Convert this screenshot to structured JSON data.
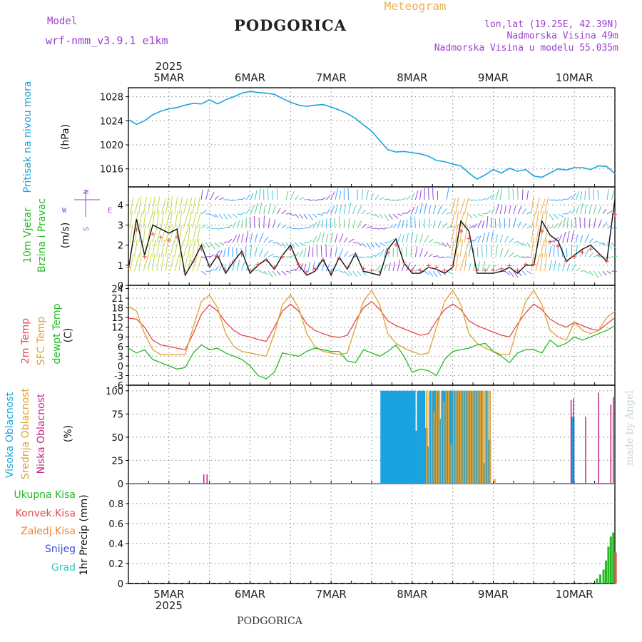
{
  "header": {
    "model_label": "Model",
    "model_name": "wrf-nmm_v3.9.1 e1km",
    "city": "PODGORICA",
    "meteogram_label": "Meteogram",
    "lonlat": "lon,lat (19.25E, 42.39N)",
    "altitude": "Nadmorska Visina 49m",
    "model_altitude": "Nadmorska Visina u modelu 55.035m",
    "footer_city": "PODGORICA",
    "credit": "made by Angel",
    "year": "2025"
  },
  "colors": {
    "pressure": "#1aa3e0",
    "temp2m": "#e8474a",
    "sfc": "#e0a030",
    "dew": "#22bb22",
    "high": "#1aa3e0",
    "mid": "#e0a030",
    "low": "#c0268a",
    "precip": "#22bb22",
    "purple_text": "#9b3fd0"
  },
  "chart_data": [
    {
      "type": "line",
      "id": "pressure",
      "labels": [
        "Pritisak na nivou mora",
        "(hPa)"
      ],
      "ylim": [
        1013,
        1029.5
      ],
      "yticks": [
        "1016",
        "1020",
        "1024",
        "1028"
      ],
      "x_days": [
        "5MAR",
        "6MAR",
        "7MAR",
        "8MAR",
        "9MAR",
        "10MAR"
      ],
      "x": [
        4.5,
        4.6,
        4.7,
        4.8,
        4.9,
        5.0,
        5.1,
        5.2,
        5.3,
        5.4,
        5.5,
        5.6,
        5.7,
        5.8,
        5.9,
        6.0,
        6.1,
        6.2,
        6.3,
        6.4,
        6.5,
        6.6,
        6.7,
        6.8,
        6.9,
        7.0,
        7.1,
        7.2,
        7.3,
        7.4,
        7.5,
        7.6,
        7.7,
        7.8,
        7.9,
        8.0,
        8.1,
        8.2,
        8.3,
        8.4,
        8.5,
        8.6,
        8.7,
        8.8,
        8.9,
        9.0,
        9.1,
        9.2,
        9.3,
        9.4,
        9.5,
        9.6,
        9.7,
        9.8,
        9.9,
        10.0,
        10.1,
        10.2,
        10.3,
        10.4,
        10.5
      ],
      "values": [
        1024.2,
        1023.4,
        1024.0,
        1025.0,
        1025.6,
        1026.0,
        1026.2,
        1026.6,
        1026.9,
        1026.8,
        1027.5,
        1026.8,
        1027.5,
        1028.0,
        1028.6,
        1028.9,
        1028.7,
        1028.6,
        1028.4,
        1027.7,
        1027.1,
        1026.6,
        1026.4,
        1026.6,
        1026.7,
        1026.3,
        1025.8,
        1025.2,
        1024.4,
        1023.3,
        1022.3,
        1020.7,
        1019.2,
        1018.8,
        1018.9,
        1018.7,
        1018.5,
        1018.1,
        1017.4,
        1017.2,
        1016.8,
        1016.5,
        1015.3,
        1014.3,
        1015.0,
        1015.9,
        1015.3,
        1016.1,
        1015.6,
        1015.9,
        1014.8,
        1014.6,
        1015.3,
        1016.0,
        1015.8,
        1016.2,
        1016.2,
        1015.9,
        1016.5,
        1016.4,
        1015.2
      ]
    },
    {
      "type": "line",
      "id": "wind",
      "labels": [
        "10m Vjetar",
        "Brzina i Pravac",
        "(m/s)"
      ],
      "ylim": [
        0,
        4.9
      ],
      "yticks": [
        "0",
        "1",
        "2",
        "3",
        "4"
      ],
      "x": [
        4.5,
        4.6,
        4.7,
        4.8,
        4.9,
        5.0,
        5.1,
        5.2,
        5.3,
        5.4,
        5.5,
        5.6,
        5.7,
        5.8,
        5.9,
        6.0,
        6.1,
        6.2,
        6.3,
        6.4,
        6.5,
        6.6,
        6.7,
        6.8,
        6.9,
        7.0,
        7.1,
        7.2,
        7.3,
        7.4,
        7.5,
        7.6,
        7.7,
        7.8,
        7.9,
        8.0,
        8.1,
        8.2,
        8.3,
        8.4,
        8.5,
        8.6,
        8.7,
        8.8,
        8.9,
        9.0,
        9.1,
        9.2,
        9.3,
        9.4,
        9.5,
        9.6,
        9.7,
        9.8,
        9.9,
        10.0,
        10.1,
        10.2,
        10.3,
        10.4,
        10.5
      ],
      "values": [
        0.8,
        3.3,
        1.5,
        3.0,
        2.8,
        2.6,
        2.8,
        0.5,
        1.2,
        2.0,
        0.9,
        1.5,
        0.6,
        1.2,
        1.7,
        0.6,
        1.0,
        1.3,
        0.8,
        1.5,
        2.0,
        1.0,
        0.5,
        0.7,
        1.3,
        0.5,
        1.4,
        0.8,
        1.6,
        0.7,
        0.6,
        0.5,
        1.8,
        2.3,
        1.1,
        0.6,
        0.6,
        0.9,
        0.8,
        0.6,
        0.9,
        3.2,
        2.7,
        0.6,
        0.6,
        0.6,
        0.7,
        0.9,
        0.6,
        1.0,
        1.0,
        3.2,
        2.5,
        2.2,
        1.2,
        1.5,
        1.8,
        2.0,
        1.6,
        1.2,
        4.3
      ],
      "compass": [
        "N",
        "W",
        "E",
        "S"
      ]
    },
    {
      "type": "line",
      "id": "temperature",
      "labels": [
        "2m Temp",
        "SFC Temp",
        "dewpt Temp",
        "(C)"
      ],
      "ylim": [
        -6,
        25
      ],
      "yticks": [
        "-6",
        "-3",
        "0",
        "3",
        "6",
        "9",
        "12",
        "15",
        "18",
        "21",
        "24"
      ],
      "x": [
        4.5,
        4.6,
        4.7,
        4.8,
        4.9,
        5.0,
        5.1,
        5.2,
        5.3,
        5.4,
        5.5,
        5.6,
        5.7,
        5.8,
        5.9,
        6.0,
        6.1,
        6.2,
        6.3,
        6.4,
        6.5,
        6.6,
        6.7,
        6.8,
        6.9,
        7.0,
        7.1,
        7.2,
        7.3,
        7.4,
        7.5,
        7.6,
        7.7,
        7.8,
        7.9,
        8.0,
        8.1,
        8.2,
        8.3,
        8.4,
        8.5,
        8.6,
        8.7,
        8.8,
        8.9,
        9.0,
        9.1,
        9.2,
        9.3,
        9.4,
        9.5,
        9.6,
        9.7,
        9.8,
        9.9,
        10.0,
        10.1,
        10.2,
        10.3,
        10.4,
        10.5
      ],
      "series": [
        {
          "name": "2m Temp",
          "values": [
            14.8,
            14.5,
            12.0,
            8.0,
            6.5,
            6.0,
            5.5,
            5.0,
            10.0,
            16.0,
            19.0,
            17.0,
            13.5,
            11.0,
            9.5,
            9.0,
            8.2,
            7.6,
            12.0,
            17.0,
            19.2,
            17.0,
            13.0,
            11.0,
            10.0,
            9.2,
            8.8,
            9.5,
            14.0,
            18.0,
            20.0,
            17.5,
            14.0,
            12.5,
            11.5,
            10.5,
            9.5,
            10.0,
            14.0,
            17.5,
            19.2,
            17.5,
            14.0,
            12.5,
            11.5,
            10.5,
            9.5,
            9.0,
            13.0,
            16.5,
            19.2,
            17.5,
            14.5,
            13.0,
            12.0,
            13.5,
            12.5,
            11.5,
            11.0,
            13.0,
            15.0
          ]
        },
        {
          "name": "SFC Temp",
          "values": [
            18.5,
            17.0,
            10.0,
            5.0,
            3.5,
            3.5,
            3.5,
            3.5,
            12.0,
            20.0,
            22.0,
            18.0,
            10.0,
            6.0,
            4.5,
            4.0,
            3.5,
            3.0,
            10.0,
            19.0,
            22.0,
            18.0,
            10.0,
            6.0,
            4.5,
            4.0,
            3.5,
            4.0,
            12.0,
            20.0,
            23.5,
            19.0,
            10.0,
            7.0,
            5.5,
            4.5,
            3.5,
            4.0,
            12.0,
            20.0,
            23.5,
            19.0,
            10.0,
            7.0,
            5.5,
            4.5,
            3.5,
            3.5,
            12.0,
            20.0,
            23.5,
            19.0,
            11.0,
            9.0,
            8.0,
            13.5,
            11.0,
            10.0,
            11.0,
            15.0,
            17.0
          ]
        },
        {
          "name": "dewpt Temp",
          "values": [
            5.5,
            4.0,
            5.0,
            2.0,
            1.0,
            0.0,
            -1.0,
            -0.5,
            4.0,
            6.5,
            5.0,
            5.5,
            4.0,
            3.0,
            2.0,
            0.0,
            -3.0,
            -4.0,
            -2.0,
            4.0,
            3.5,
            3.0,
            4.5,
            5.5,
            5.0,
            4.5,
            4.5,
            1.5,
            1.0,
            5.0,
            4.0,
            3.0,
            4.5,
            6.5,
            3.0,
            -2.0,
            -1.0,
            -1.5,
            -3.0,
            2.0,
            4.5,
            5.0,
            5.5,
            6.5,
            7.0,
            4.5,
            3.0,
            1.0,
            4.0,
            5.0,
            5.0,
            4.0,
            8.0,
            6.0,
            7.0,
            9.0,
            8.0,
            9.0,
            10.0,
            11.0,
            12.5
          ]
        }
      ]
    },
    {
      "type": "bar",
      "id": "cloud",
      "labels": [
        "Visoka Oblacnost",
        "Srednja Oblacnost",
        "Niska Oblacnost",
        "(%)"
      ],
      "ylim": [
        0,
        106
      ],
      "yticks": [
        "0",
        "25",
        "50",
        "75",
        "100"
      ],
      "series": [
        {
          "name": "Visoka Oblacnost",
          "x": [
            7.63,
            7.66,
            7.69,
            7.72,
            7.75,
            7.78,
            7.81,
            7.84,
            7.87,
            7.9,
            7.93,
            7.96,
            7.99,
            8.02,
            8.05,
            8.08,
            8.11,
            8.14,
            8.17,
            8.2,
            8.23,
            8.26,
            8.29,
            8.32,
            8.35,
            8.38,
            8.41,
            8.44,
            8.47,
            8.5,
            8.53,
            8.56,
            8.59,
            8.62,
            8.65,
            8.68,
            8.71,
            8.74,
            8.77,
            8.8,
            8.83,
            8.86,
            8.89,
            8.92,
            8.95,
            9.98
          ],
          "values": [
            100,
            100,
            100,
            100,
            100,
            100,
            100,
            100,
            100,
            100,
            100,
            100,
            100,
            100,
            57,
            100,
            100,
            100,
            60,
            40,
            100,
            100,
            100,
            100,
            70,
            100,
            100,
            100,
            100,
            100,
            100,
            100,
            100,
            100,
            100,
            100,
            100,
            100,
            100,
            100,
            100,
            100,
            22,
            100,
            47,
            72
          ]
        },
        {
          "name": "Srednja Oblacnost",
          "x": [
            8.18,
            8.21,
            8.24,
            8.27,
            8.3,
            8.33,
            8.36,
            8.39,
            8.42,
            8.45,
            8.48,
            8.51,
            8.54,
            8.57,
            8.6,
            8.63,
            8.66,
            8.69,
            8.72,
            8.75,
            8.78,
            8.81,
            8.84,
            8.87,
            8.9,
            8.93,
            8.96,
            9.02
          ],
          "values": [
            100,
            100,
            100,
            78,
            100,
            100,
            100,
            88,
            100,
            100,
            42,
            100,
            100,
            100,
            100,
            100,
            100,
            100,
            100,
            100,
            100,
            100,
            100,
            100,
            100,
            100,
            100,
            5
          ]
        },
        {
          "name": "Niska Oblacnost",
          "x": [
            5.43,
            5.47,
            9.96,
            9.99,
            10.14,
            10.3,
            10.45,
            10.48
          ],
          "values": [
            10,
            10,
            90,
            92,
            72,
            98,
            85,
            93
          ]
        }
      ]
    },
    {
      "type": "bar",
      "id": "precip",
      "labels": [
        "1hr Precip (mm)"
      ],
      "legend": [
        "Ukupna Kisa",
        "Konvek.Kisa",
        "Zaledj.Kisa",
        "Snijeg",
        "Grad"
      ],
      "ylim": [
        0,
        1.0
      ],
      "yticks": [
        "0",
        "0.2",
        "0.4",
        "0.6",
        "0.8"
      ],
      "x": [
        10.12,
        10.2,
        10.28,
        10.32,
        10.36,
        10.39,
        10.42,
        10.45,
        10.48,
        10.51
      ],
      "values": [
        0.005,
        0.01,
        0.05,
        0.09,
        0.14,
        0.23,
        0.37,
        0.47,
        0.51,
        0.31
      ]
    }
  ]
}
